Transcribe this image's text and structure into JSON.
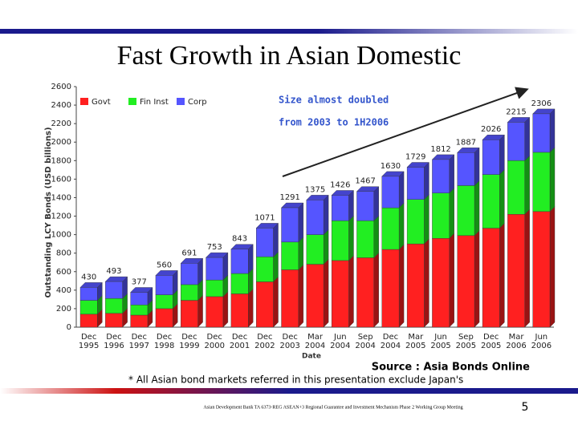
{
  "chart_data": {
    "type": "stacked-bar",
    "title": "Fast Growth in Asian Domestic",
    "y_label": "Outstanding LCY Bonds (USD billions)",
    "x_label": "Date",
    "annotation": [
      "Size almost doubled",
      "from 2003 to 1H2006"
    ],
    "source": "Source : Asia Bonds Online",
    "categories": [
      "Dec 1995",
      "Dec 1996",
      "Dec 1997",
      "Dec 1998",
      "Dec 1999",
      "Dec 2000",
      "Dec 2001",
      "Dec 2002",
      "Dec 2003",
      "Mar 2004",
      "Jun 2004",
      "Sep 2004",
      "Dec 2004",
      "Mar 2005",
      "Jun 2005",
      "Sep 2005",
      "Dec 2005",
      "Mar 2006",
      "Jun 2006"
    ],
    "series": [
      {
        "name": "Govt",
        "color": "#ff2020",
        "values": [
          140,
          150,
          130,
          200,
          290,
          330,
          360,
          490,
          620,
          680,
          720,
          750,
          840,
          900,
          960,
          990,
          1070,
          1220,
          1250
        ]
      },
      {
        "name": "Fin Inst",
        "color": "#22ee22",
        "values": [
          150,
          160,
          110,
          150,
          170,
          180,
          220,
          270,
          300,
          320,
          430,
          400,
          450,
          480,
          490,
          540,
          580,
          580,
          640
        ]
      },
      {
        "name": "Corp",
        "color": "#5555ff",
        "values": [
          140,
          183,
          137,
          210,
          231,
          243,
          263,
          311,
          371,
          375,
          276,
          317,
          340,
          349,
          362,
          357,
          376,
          415,
          416
        ]
      }
    ],
    "totals": [
      430,
      493,
      377,
      560,
      691,
      753,
      843,
      1071,
      1291,
      1375,
      1426,
      1467,
      1630,
      1729,
      1812,
      1887,
      2026,
      2215,
      2306
    ],
    "ylim": [
      0,
      2600
    ],
    "yticks": [
      0,
      200,
      400,
      600,
      800,
      1000,
      1200,
      1400,
      1600,
      1800,
      2000,
      2200,
      2400,
      2600
    ],
    "grid": false
  },
  "slide": {
    "footnote": "* All Asian bond markets referred in this presentation exclude Japan's",
    "footer": "Asian Development Bank TA 6373-REG ASEAN+3 Regional Guarantee and Investment Mechanism Phase 2 Working Group Meeting",
    "page": "5"
  }
}
